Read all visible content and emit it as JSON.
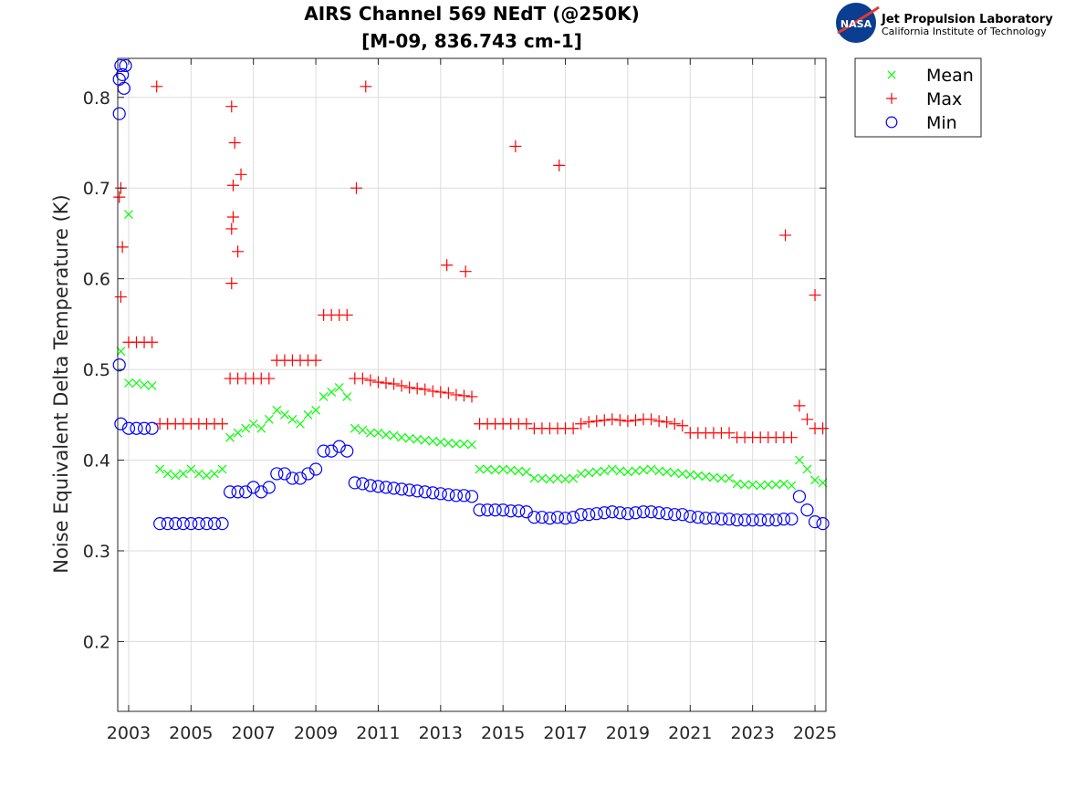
{
  "logo": {
    "org": "Jet Propulsion Laboratory",
    "sub": "California Institute of Technology",
    "badge": "NASA"
  },
  "chart_data": {
    "type": "scatter",
    "title": "AIRS Channel 569 NEdT (@250K)",
    "subtitle": "[M-09, 836.743 cm-1]",
    "xlabel": "",
    "ylabel": "Noise Equivalent Delta Temperature (K)",
    "xlim": [
      2002.65,
      2025.35
    ],
    "ylim": [
      0.123,
      0.843
    ],
    "xticks": [
      2003,
      2005,
      2007,
      2009,
      2011,
      2013,
      2015,
      2017,
      2019,
      2021,
      2023,
      2025
    ],
    "xtick_labels": [
      "2003",
      "2005",
      "2007",
      "2009",
      "2011",
      "2013",
      "2015",
      "2017",
      "2019",
      "2021",
      "2023",
      "2025"
    ],
    "yticks": [
      0.2,
      0.3,
      0.4,
      0.5,
      0.6,
      0.7,
      0.8
    ],
    "ytick_labels": [
      "0.2",
      "0.3",
      "0.4",
      "0.5",
      "0.6",
      "0.7",
      "0.8"
    ],
    "grid": true,
    "legend_placement": "outside-top-right",
    "x": [
      2002.75,
      2003.0,
      2003.25,
      2003.5,
      2003.75,
      2004.0,
      2004.25,
      2004.5,
      2004.75,
      2005.0,
      2005.25,
      2005.5,
      2005.75,
      2006.0,
      2006.25,
      2006.5,
      2006.75,
      2007.0,
      2007.25,
      2007.5,
      2007.75,
      2008.0,
      2008.25,
      2008.5,
      2008.75,
      2009.0,
      2009.25,
      2009.5,
      2009.75,
      2010.0,
      2010.25,
      2010.5,
      2010.75,
      2011.0,
      2011.25,
      2011.5,
      2011.75,
      2012.0,
      2012.25,
      2012.5,
      2012.75,
      2013.0,
      2013.25,
      2013.5,
      2013.75,
      2014.0,
      2014.25,
      2014.5,
      2014.75,
      2015.0,
      2015.25,
      2015.5,
      2015.75,
      2016.0,
      2016.25,
      2016.5,
      2016.75,
      2017.0,
      2017.25,
      2017.5,
      2017.75,
      2018.0,
      2018.25,
      2018.5,
      2018.75,
      2019.0,
      2019.25,
      2019.5,
      2019.75,
      2020.0,
      2020.25,
      2020.5,
      2020.75,
      2021.0,
      2021.25,
      2021.5,
      2021.75,
      2022.0,
      2022.25,
      2022.5,
      2022.75,
      2023.0,
      2023.25,
      2023.5,
      2023.75,
      2024.0,
      2024.25,
      2024.5,
      2024.75,
      2025.0,
      2025.25
    ],
    "series": [
      {
        "name": "Mean",
        "marker": "x",
        "color": "#00ff00",
        "values": [
          0.52,
          0.485,
          0.485,
          0.483,
          0.482,
          0.39,
          0.385,
          0.383,
          0.385,
          0.39,
          0.385,
          0.383,
          0.385,
          0.39,
          0.425,
          0.43,
          0.435,
          0.44,
          0.435,
          0.445,
          0.455,
          0.45,
          0.445,
          0.44,
          0.45,
          0.455,
          0.47,
          0.475,
          0.48,
          0.47,
          0.435,
          0.433,
          0.43,
          0.43,
          0.428,
          0.427,
          0.425,
          0.424,
          0.423,
          0.422,
          0.421,
          0.42,
          0.419,
          0.418,
          0.418,
          0.417,
          0.39,
          0.39,
          0.389,
          0.39,
          0.389,
          0.388,
          0.387,
          0.38,
          0.38,
          0.379,
          0.38,
          0.379,
          0.38,
          0.385,
          0.386,
          0.387,
          0.388,
          0.39,
          0.388,
          0.387,
          0.388,
          0.389,
          0.39,
          0.388,
          0.387,
          0.386,
          0.385,
          0.384,
          0.383,
          0.382,
          0.381,
          0.38,
          0.38,
          0.374,
          0.373,
          0.373,
          0.372,
          0.373,
          0.373,
          0.374,
          0.372,
          0.4,
          0.39,
          0.378,
          0.375
        ],
        "outliers": [
          [
            2003.0,
            0.671
          ]
        ]
      },
      {
        "name": "Max",
        "marker": "+",
        "color": "#ff0000",
        "values": [
          0.58,
          0.53,
          0.53,
          0.53,
          0.53,
          0.44,
          0.44,
          0.44,
          0.44,
          0.44,
          0.44,
          0.44,
          0.44,
          0.44,
          0.49,
          0.49,
          0.49,
          0.49,
          0.49,
          0.49,
          0.51,
          0.51,
          0.51,
          0.51,
          0.51,
          0.51,
          0.56,
          0.56,
          0.56,
          0.56,
          0.49,
          0.49,
          0.488,
          0.486,
          0.485,
          0.484,
          0.482,
          0.48,
          0.479,
          0.478,
          0.476,
          0.475,
          0.474,
          0.472,
          0.471,
          0.47,
          0.44,
          0.44,
          0.44,
          0.44,
          0.44,
          0.44,
          0.44,
          0.435,
          0.435,
          0.435,
          0.435,
          0.435,
          0.435,
          0.44,
          0.442,
          0.443,
          0.444,
          0.445,
          0.444,
          0.443,
          0.444,
          0.445,
          0.445,
          0.443,
          0.442,
          0.44,
          0.438,
          0.43,
          0.43,
          0.43,
          0.43,
          0.43,
          0.43,
          0.425,
          0.425,
          0.425,
          0.425,
          0.425,
          0.425,
          0.425,
          0.425,
          0.46,
          0.445,
          0.435,
          0.435
        ],
        "outliers": [
          [
            2002.7,
            0.69
          ],
          [
            2002.75,
            0.7
          ],
          [
            2002.8,
            0.635
          ],
          [
            2003.9,
            0.812
          ],
          [
            2006.3,
            0.79
          ],
          [
            2006.4,
            0.75
          ],
          [
            2006.35,
            0.703
          ],
          [
            2006.6,
            0.715
          ],
          [
            2006.35,
            0.668
          ],
          [
            2006.3,
            0.655
          ],
          [
            2006.5,
            0.63
          ],
          [
            2006.3,
            0.595
          ],
          [
            2010.3,
            0.7
          ],
          [
            2010.6,
            0.812
          ],
          [
            2013.2,
            0.615
          ],
          [
            2013.8,
            0.608
          ],
          [
            2015.4,
            0.746
          ],
          [
            2016.8,
            0.725
          ],
          [
            2024.05,
            0.648
          ],
          [
            2025.0,
            0.582
          ]
        ]
      },
      {
        "name": "Min",
        "marker": "o",
        "color": "#0000ff",
        "values": [
          0.44,
          0.435,
          0.435,
          0.435,
          0.435,
          0.33,
          0.33,
          0.33,
          0.33,
          0.33,
          0.33,
          0.33,
          0.33,
          0.33,
          0.365,
          0.365,
          0.365,
          0.37,
          0.365,
          0.37,
          0.385,
          0.385,
          0.38,
          0.38,
          0.385,
          0.39,
          0.41,
          0.41,
          0.415,
          0.41,
          0.375,
          0.374,
          0.372,
          0.371,
          0.37,
          0.369,
          0.368,
          0.367,
          0.366,
          0.365,
          0.364,
          0.363,
          0.362,
          0.361,
          0.361,
          0.36,
          0.345,
          0.345,
          0.345,
          0.345,
          0.344,
          0.344,
          0.343,
          0.337,
          0.337,
          0.336,
          0.337,
          0.336,
          0.337,
          0.34,
          0.34,
          0.341,
          0.342,
          0.343,
          0.342,
          0.341,
          0.342,
          0.343,
          0.343,
          0.342,
          0.341,
          0.34,
          0.34,
          0.338,
          0.337,
          0.336,
          0.336,
          0.335,
          0.335,
          0.334,
          0.334,
          0.334,
          0.334,
          0.334,
          0.334,
          0.335,
          0.335,
          0.36,
          0.345,
          0.332,
          0.33
        ],
        "outliers": [
          [
            2002.7,
            0.82
          ],
          [
            2002.75,
            0.835
          ],
          [
            2002.8,
            0.825
          ],
          [
            2002.85,
            0.81
          ],
          [
            2002.9,
            0.835
          ],
          [
            2002.7,
            0.782
          ],
          [
            2002.7,
            0.505
          ]
        ]
      }
    ]
  }
}
